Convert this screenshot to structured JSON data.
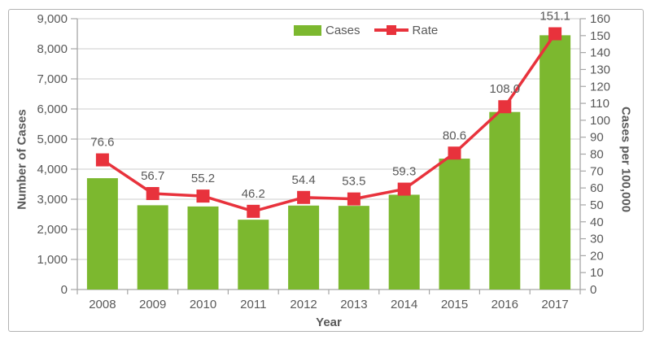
{
  "chart": {
    "legend": {
      "cases_label": "Cases",
      "rate_label": "Rate"
    },
    "left_axis": {
      "title": "Number of Cases",
      "ticks": [
        "0",
        "1,000",
        "2,000",
        "3,000",
        "4,000",
        "5,000",
        "6,000",
        "7,000",
        "8,000",
        "9,000"
      ]
    },
    "right_axis": {
      "title": "Cases per 100,000",
      "ticks": [
        "0",
        "10",
        "20",
        "30",
        "40",
        "50",
        "60",
        "70",
        "80",
        "90",
        "100",
        "110",
        "120",
        "130",
        "140",
        "150",
        "160"
      ]
    },
    "x_axis": {
      "title": "Year"
    }
  },
  "chart_data": {
    "type": "bar",
    "title": "",
    "xlabel": "Year",
    "ylabel_left": "Number of Cases",
    "ylabel_right": "Cases per 100,000",
    "ylim_left": [
      0,
      9000
    ],
    "ylim_right": [
      0,
      160
    ],
    "grid": true,
    "legend_position": "top-center",
    "categories": [
      "2008",
      "2009",
      "2010",
      "2011",
      "2012",
      "2013",
      "2014",
      "2015",
      "2016",
      "2017"
    ],
    "series": [
      {
        "name": "Cases",
        "type": "bar",
        "axis": "left",
        "color": "#7CB82F",
        "values": [
          3700,
          2800,
          2760,
          2320,
          2790,
          2780,
          3150,
          4350,
          5900,
          8450
        ]
      },
      {
        "name": "Rate",
        "type": "line",
        "axis": "right",
        "color": "#E8323C",
        "values": [
          76.6,
          56.7,
          55.2,
          46.2,
          54.4,
          53.5,
          59.3,
          80.6,
          108.0,
          151.1
        ],
        "labels": [
          "76.6",
          "56.7",
          "55.2",
          "46.2",
          "54.4",
          "53.5",
          "59.3",
          "80.6",
          "108.0",
          "151.1"
        ]
      }
    ]
  },
  "colors": {
    "bar_green": "#7CB82F",
    "line_red": "#E8323C",
    "grid": "#cccccc",
    "axis": "#a6a6a6",
    "text": "#595959"
  }
}
